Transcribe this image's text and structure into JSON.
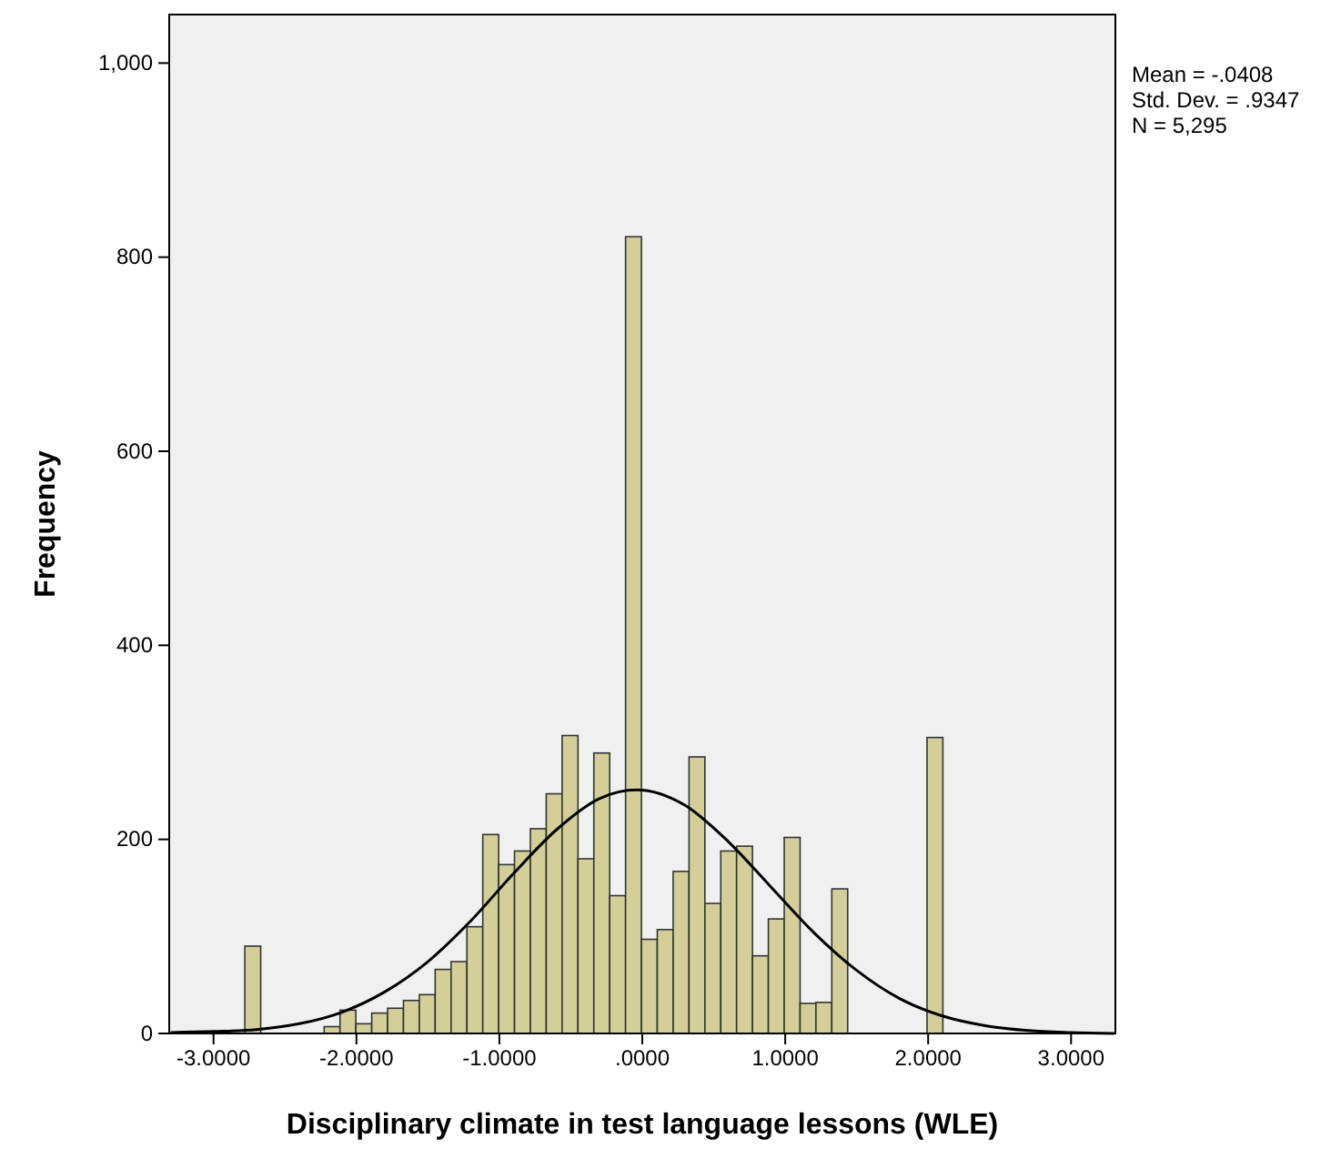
{
  "chart_data": {
    "type": "histogram",
    "xlabel": "Disciplinary climate in test language lessons (WLE)",
    "ylabel": "Frequency",
    "bins": [
      -2.781,
      -2.67,
      -2.559,
      -2.448,
      -2.337,
      -2.226,
      -2.115,
      -2.004,
      -1.893,
      -1.782,
      -1.671,
      -1.56,
      -1.449,
      -1.338,
      -1.227,
      -1.116,
      -1.005,
      -0.894,
      -0.783,
      -0.672,
      -0.561,
      -0.45,
      -0.339,
      -0.228,
      -0.117,
      -0.006,
      0.105,
      0.216,
      0.327,
      0.438,
      0.549,
      0.66,
      0.771,
      0.882,
      0.993,
      1.104,
      1.215,
      1.326,
      1.437,
      1.548,
      1.659,
      1.77,
      1.881,
      1.992,
      2.103
    ],
    "values": [
      90,
      0,
      0,
      0,
      0,
      7,
      24,
      10,
      21,
      26,
      34,
      40,
      66,
      74,
      110,
      205,
      174,
      188,
      211,
      247,
      307,
      180,
      289,
      142,
      821,
      97,
      107,
      167,
      285,
      134,
      188,
      193,
      80,
      118,
      202,
      31,
      32,
      149,
      0,
      0,
      0,
      0,
      0,
      305
    ],
    "color": "#d4cf99",
    "series": [
      {
        "type": "line",
        "color": "#000000",
        "x": [
          -3.3,
          -3.0,
          -2.7,
          -2.4,
          -2.1,
          -1.8,
          -1.5,
          -1.2,
          -0.9,
          -0.6,
          -0.3,
          -0.04,
          0.3,
          0.6,
          0.9,
          1.2,
          1.5,
          1.8,
          2.1,
          2.4,
          2.7,
          3.0,
          3.3
        ],
        "values": [
          1,
          2,
          4,
          10,
          22,
          43,
          74,
          116,
          165,
          210,
          242,
          251,
          235,
          198,
          151,
          104,
          65,
          36,
          18,
          8,
          3,
          1,
          0
        ]
      }
    ],
    "xlim": [
      -3.31,
      3.31
    ],
    "xticks": [
      {
        "value": -3,
        "label": "-3.0000"
      },
      {
        "value": -2,
        "label": "-2.0000"
      },
      {
        "value": -1,
        "label": "-1.0000"
      },
      {
        "value": 0,
        "label": ".0000"
      },
      {
        "value": 1,
        "label": "1.0000"
      },
      {
        "value": 2,
        "label": "2.0000"
      },
      {
        "value": 3,
        "label": "3.0000"
      }
    ],
    "ylim": [
      0,
      1050
    ],
    "yticks": [
      0,
      200,
      400,
      600,
      800,
      {
        "value": 1000,
        "label": "1,000"
      }
    ],
    "annotations": [
      "Mean = -.0408",
      "Std. Dev. = .9347",
      "N = 5,295"
    ]
  }
}
